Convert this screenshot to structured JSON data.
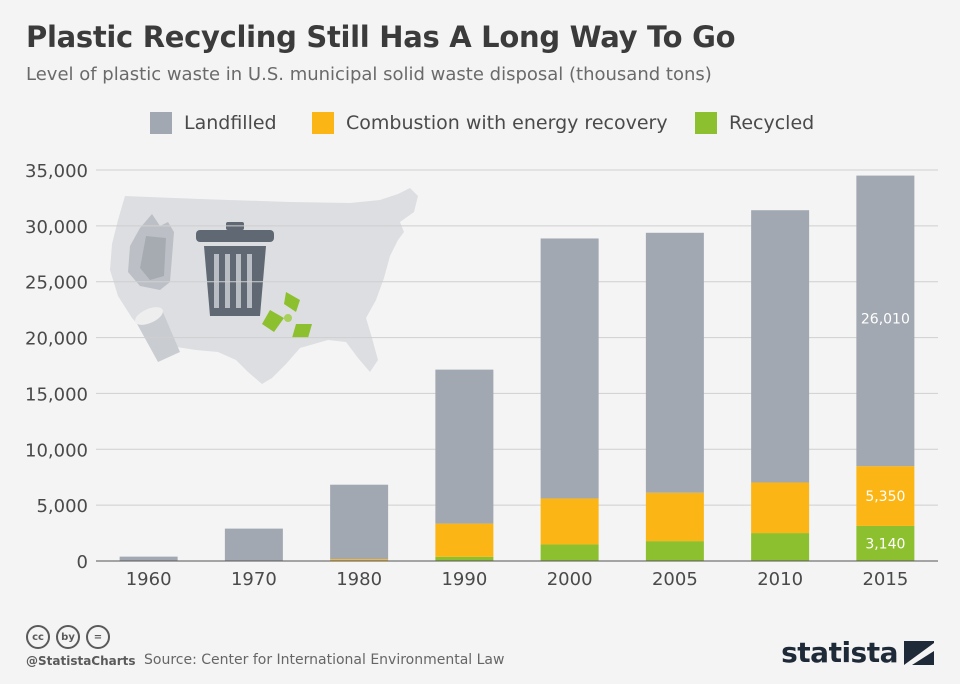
{
  "chart_data": {
    "type": "bar",
    "stacked": true,
    "title": "Plastic Recycling Still Has A Long Way To Go",
    "subtitle": "Level of plastic waste in U.S. municipal solid waste disposal (thousand tons)",
    "categories": [
      "1960",
      "1970",
      "1980",
      "1990",
      "2000",
      "2005",
      "2010",
      "2015"
    ],
    "series": [
      {
        "name": "Recycled",
        "color": "#8dc02f",
        "values": [
          0,
          0,
          20,
          370,
          1480,
          1780,
          2500,
          3140
        ]
      },
      {
        "name": "Combustion with energy recovery",
        "color": "#fbb515",
        "values": [
          0,
          0,
          140,
          2980,
          4120,
          4330,
          4530,
          5350
        ]
      },
      {
        "name": "Landfilled",
        "color": "#a1a8b1",
        "values": [
          390,
          2900,
          6670,
          13780,
          23270,
          23270,
          24370,
          26010
        ]
      }
    ],
    "legend_order": [
      "Landfilled",
      "Combustion with energy recovery",
      "Recycled"
    ],
    "data_labels": {
      "category": "2015",
      "values": [
        "26,010",
        "5,350",
        "3,140"
      ]
    },
    "ylim": [
      0,
      35000
    ],
    "yticks": [
      0,
      5000,
      10000,
      15000,
      20000,
      25000,
      30000,
      35000
    ],
    "ytick_labels": [
      "0",
      "5,000",
      "10,000",
      "15,000",
      "20,000",
      "25,000",
      "30,000",
      "35,000"
    ],
    "grid": true,
    "legend_position": "top"
  },
  "footer": {
    "handle": "@StatistaCharts",
    "source": "Source: Center for International Environmental Law",
    "logo": "statista",
    "cc_icons": [
      "cc",
      "by",
      "="
    ]
  }
}
